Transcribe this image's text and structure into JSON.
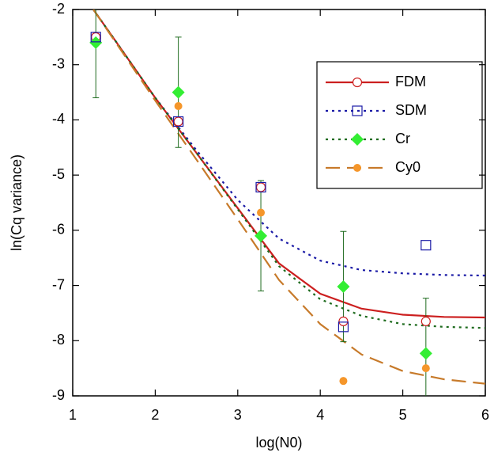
{
  "chart_data": {
    "type": "line",
    "x_label": "log(N0)",
    "y_label": "ln(Cq variance)",
    "xlim": [
      1,
      6
    ],
    "ylim": [
      -9,
      -2
    ],
    "xticks": [
      1,
      2,
      3,
      4,
      5,
      6
    ],
    "yticks": [
      -9,
      -8,
      -7,
      -6,
      -5,
      -4,
      -3,
      -2
    ],
    "x": [
      1.25,
      1.5,
      2,
      2.5,
      3,
      3.5,
      4,
      4.5,
      5,
      5.5,
      6
    ],
    "point_x": [
      1.28,
      2.28,
      3.28,
      4.28,
      5.28
    ],
    "series": [
      {
        "name": "FDM",
        "color": "#cc1f1f",
        "dash": "solid",
        "marker": "open-circle",
        "values": [
          -2.0,
          -2.53,
          -3.6,
          -4.6,
          -5.6,
          -6.6,
          -7.15,
          -7.42,
          -7.53,
          -7.57,
          -7.58
        ],
        "points": [
          -2.5,
          -4.03,
          -5.22,
          -7.65,
          -7.65
        ]
      },
      {
        "name": "SDM",
        "color": "#1a1aa6",
        "dash": "dot",
        "marker": "open-square",
        "values": [
          -2.0,
          -2.53,
          -3.6,
          -4.55,
          -5.45,
          -6.15,
          -6.55,
          -6.72,
          -6.78,
          -6.81,
          -6.82
        ],
        "points": [
          -2.5,
          -4.03,
          -5.22,
          -7.75,
          -6.27
        ]
      },
      {
        "name": "Cr",
        "color": "#1e6b1e",
        "marker_color": "#33ee33",
        "text_color": "#33dd33",
        "dash": "dot",
        "marker": "diamond",
        "values": [
          -2.0,
          -2.53,
          -3.6,
          -4.6,
          -5.62,
          -6.65,
          -7.25,
          -7.55,
          -7.7,
          -7.75,
          -7.77
        ],
        "points": [
          -2.6,
          -3.5,
          -6.1,
          -7.02,
          -8.23
        ],
        "errors": [
          1,
          1,
          1,
          1,
          1
        ]
      },
      {
        "name": "Cy0",
        "color": "#c77a2a",
        "marker_color": "#f5962a",
        "text_color": "#f0901e",
        "dash": "dash",
        "marker": "filled-circle",
        "values": [
          -2.0,
          -2.55,
          -3.65,
          -4.72,
          -5.8,
          -6.9,
          -7.7,
          -8.25,
          -8.55,
          -8.7,
          -8.78
        ],
        "points": [
          -2.55,
          -3.75,
          -5.68,
          -8.73,
          -8.5
        ]
      }
    ]
  }
}
